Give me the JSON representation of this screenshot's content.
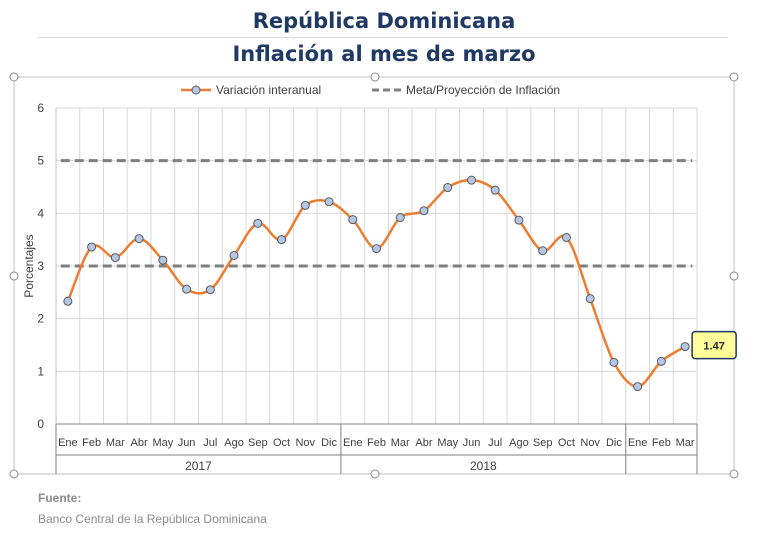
{
  "header": {
    "title": "República Dominicana",
    "subtitle": "Inflación al mes de marzo"
  },
  "footer": {
    "source_label": "Fuente:",
    "source_text": "Banco Central de la República Dominicana"
  },
  "chart_data": {
    "type": "line",
    "ylabel": "Porcentajes",
    "ylim": [
      0,
      6
    ],
    "yticks": [
      0,
      1,
      2,
      3,
      4,
      5,
      6
    ],
    "grid": true,
    "legend_position": "top",
    "categories": [
      "Ene",
      "Feb",
      "Mar",
      "Abr",
      "May",
      "Jun",
      "Jul",
      "Ago",
      "Sep",
      "Oct",
      "Nov",
      "Dic",
      "Ene",
      "Feb",
      "Mar",
      "Abr",
      "May",
      "Jun",
      "Jul",
      "Ago",
      "Sep",
      "Oct",
      "Nov",
      "Dic",
      "Ene",
      "Feb",
      "Mar"
    ],
    "groups": [
      {
        "label": "2017",
        "count": 12
      },
      {
        "label": "2018",
        "count": 12
      },
      {
        "label": "",
        "count": 3
      }
    ],
    "series": [
      {
        "name": "Variación interanual",
        "style": "line-markers",
        "color": "#ed7d31",
        "marker_color": "#b4c7e7",
        "values": [
          2.33,
          3.36,
          3.16,
          3.52,
          3.11,
          2.56,
          2.55,
          3.2,
          3.81,
          3.5,
          4.15,
          4.22,
          3.88,
          3.33,
          3.92,
          4.05,
          4.49,
          4.63,
          4.44,
          3.87,
          3.29,
          3.54,
          2.38,
          1.17,
          0.71,
          1.19,
          1.47
        ]
      },
      {
        "name": "Meta/Proyección de Inflación",
        "style": "dashed",
        "color": "#7f7f7f",
        "upper": 5,
        "lower": 3
      }
    ],
    "callout": {
      "index": 26,
      "label": "1.47",
      "bg": "#ffff99",
      "border": "#1f3864"
    }
  }
}
